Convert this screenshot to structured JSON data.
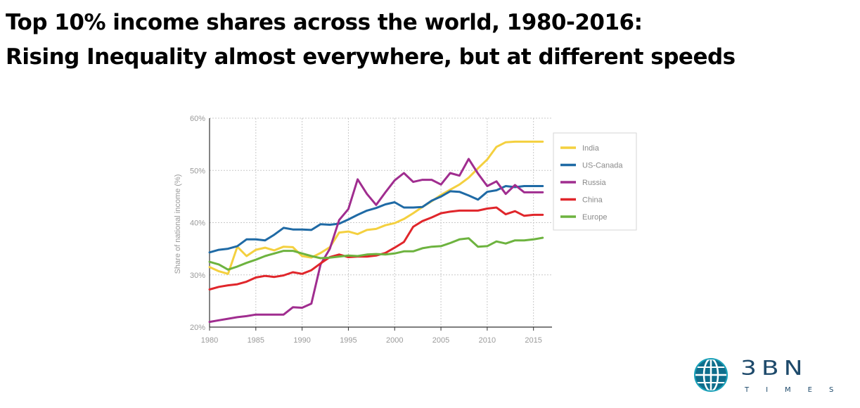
{
  "slide": {
    "title_line1": "Top 10% income shares across the world, 1980-2016:",
    "title_line2": "Rising Inequality almost everywhere, but at different speeds"
  },
  "logo": {
    "word": "3BN",
    "sub": "TIMES"
  },
  "colors": {
    "India": "#f4d03f",
    "US-Canada": "#1f6aa5",
    "Russia": "#a02d8f",
    "China": "#e0262b",
    "Europe": "#6db33f",
    "grid": "#c8c8c8",
    "axis_text": "#9a9a9a"
  },
  "chart_data": {
    "type": "line",
    "title": "",
    "xlabel": "",
    "ylabel": "Share of national income (%)",
    "xlim": [
      1980,
      2017
    ],
    "ylim": [
      20,
      60
    ],
    "x_ticks": [
      "1980",
      "1985",
      "1990",
      "1995",
      "2000",
      "2005",
      "2010",
      "2015"
    ],
    "y_ticks": [
      "20%",
      "30%",
      "40%",
      "50%",
      "60%"
    ],
    "grid": true,
    "legend_position": "right",
    "x": [
      1980,
      1981,
      1982,
      1983,
      1984,
      1985,
      1986,
      1987,
      1988,
      1989,
      1990,
      1991,
      1992,
      1993,
      1994,
      1995,
      1996,
      1997,
      1998,
      1999,
      2000,
      2001,
      2002,
      2003,
      2004,
      2005,
      2006,
      2007,
      2008,
      2009,
      2010,
      2011,
      2012,
      2013,
      2014,
      2015,
      2016
    ],
    "series": [
      {
        "name": "India",
        "values": [
          31.5,
          30.7,
          30.2,
          35.4,
          33.6,
          34.8,
          35.2,
          34.7,
          35.4,
          35.3,
          33.6,
          33.3,
          34.2,
          35.3,
          38.1,
          38.3,
          37.8,
          38.6,
          38.8,
          39.5,
          39.9,
          40.7,
          41.8,
          43.0,
          44.1,
          45.3,
          46.3,
          47.3,
          48.6,
          50.4,
          52.1,
          54.5,
          55.4,
          55.5,
          55.5,
          55.5,
          55.5
        ]
      },
      {
        "name": "US-Canada",
        "values": [
          34.3,
          34.8,
          35.0,
          35.5,
          36.8,
          36.8,
          36.6,
          37.7,
          39.0,
          38.7,
          38.7,
          38.6,
          39.7,
          39.6,
          39.8,
          40.6,
          41.5,
          42.3,
          42.8,
          43.5,
          43.9,
          42.9,
          42.9,
          43.0,
          44.2,
          45.0,
          46.0,
          45.9,
          45.2,
          44.4,
          45.9,
          46.2,
          47.0,
          46.8,
          47.0,
          47.0,
          47.0
        ]
      },
      {
        "name": "Russia",
        "values": [
          21.0,
          21.3,
          21.6,
          21.9,
          22.1,
          22.4,
          22.4,
          22.4,
          22.4,
          23.8,
          23.7,
          24.5,
          32.0,
          35.0,
          40.5,
          42.6,
          48.3,
          45.5,
          43.4,
          45.8,
          48.1,
          49.5,
          47.8,
          48.2,
          48.2,
          47.3,
          49.5,
          49.0,
          52.2,
          49.4,
          47.0,
          47.9,
          45.5,
          47.2,
          45.8,
          45.8,
          45.8
        ]
      },
      {
        "name": "China",
        "values": [
          27.2,
          27.7,
          28.0,
          28.2,
          28.7,
          29.5,
          29.8,
          29.6,
          29.9,
          30.5,
          30.2,
          30.9,
          32.2,
          33.4,
          33.9,
          33.4,
          33.5,
          33.5,
          33.7,
          34.2,
          35.2,
          36.3,
          39.2,
          40.3,
          41.0,
          41.8,
          42.1,
          42.3,
          42.3,
          42.3,
          42.7,
          42.9,
          41.6,
          42.2,
          41.3,
          41.5,
          41.5
        ]
      },
      {
        "name": "Europe",
        "values": [
          32.5,
          32.0,
          31.0,
          31.6,
          32.3,
          32.9,
          33.6,
          34.1,
          34.6,
          34.6,
          34.1,
          33.6,
          33.2,
          33.3,
          33.5,
          33.7,
          33.6,
          33.9,
          34.0,
          33.9,
          34.1,
          34.5,
          34.5,
          35.1,
          35.4,
          35.5,
          36.1,
          36.8,
          37.0,
          35.4,
          35.5,
          36.4,
          36.0,
          36.6,
          36.6,
          36.8,
          37.1
        ]
      }
    ]
  }
}
